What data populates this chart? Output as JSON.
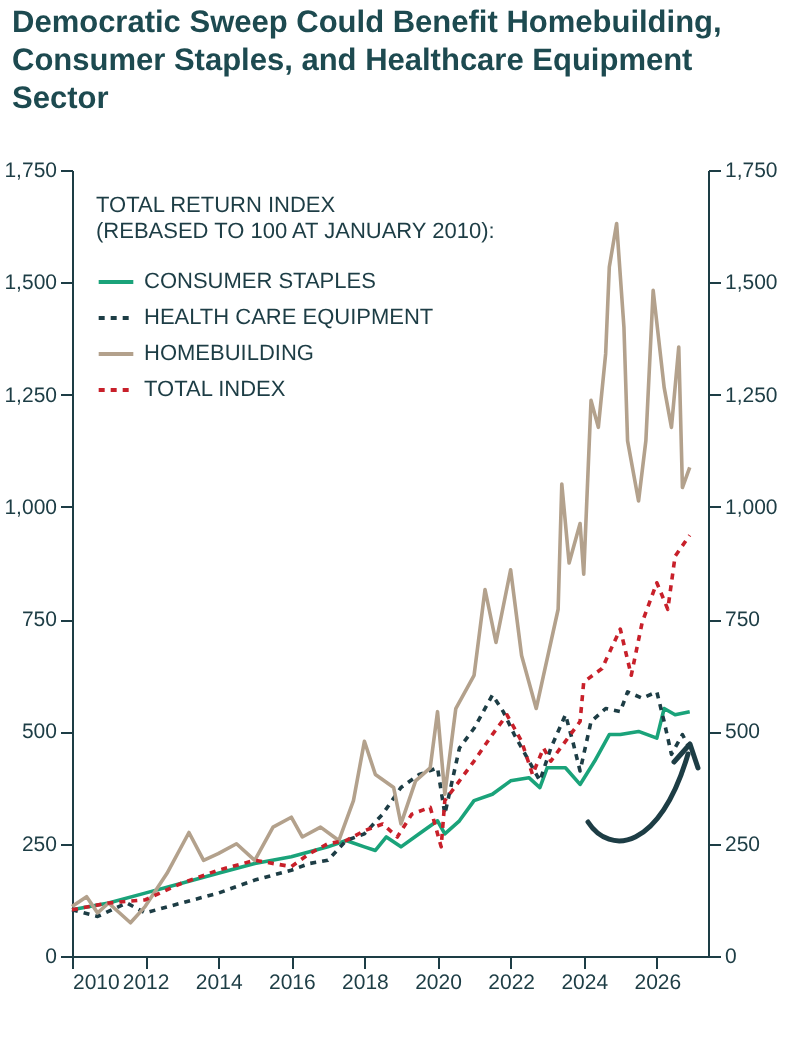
{
  "chart_data": {
    "type": "line",
    "title": "Democratic Sweep Could Benefit Homebuilding, Consumer Staples, and Healthcare Equipment Sector",
    "legend_title": "TOTAL RETURN INDEX\n(REBASED TO 100 AT JANUARY 2010):",
    "legend": "top left",
    "xlim": [
      2010,
      2027.4
    ],
    "xticks": [
      2010,
      2012,
      2014,
      2016,
      2018,
      2020,
      2022,
      2024,
      2026
    ],
    "ylim": [
      0,
      1750
    ],
    "yticks": [
      0,
      250,
      500,
      750,
      {
        "value": 1000,
        "label": "1,000"
      },
      {
        "value": 1250,
        "label": "1,250"
      },
      {
        "value": 1500,
        "label": "1,500"
      },
      {
        "value": 1750,
        "label": "1,750"
      }
    ],
    "y2lim": [
      0,
      1750
    ],
    "y2ticks": [
      0,
      250,
      500,
      750,
      {
        "value": 1000,
        "label": "1,000"
      },
      {
        "value": 1250,
        "label": "1,250"
      },
      {
        "value": 1500,
        "label": "1,500"
      },
      {
        "value": 1750,
        "label": "1,750"
      }
    ],
    "grid": false,
    "series": [
      {
        "name": "CONSUMER STAPLES",
        "color": "#1aa37a",
        "line_style": "solid",
        "x": [
          2010,
          2011,
          2012,
          2013,
          2014,
          2015,
          2016,
          2017,
          2017.5,
          2018,
          2018.3,
          2018.6,
          2019,
          2019.5,
          2020,
          2020.2,
          2020.6,
          2021,
          2021.5,
          2022,
          2022.5,
          2022.8,
          2023,
          2023.5,
          2023.9,
          2024.3,
          2024.7,
          2025,
          2025.5,
          2026,
          2026.2,
          2026.5,
          2026.9
        ],
        "values": [
          103,
          118,
          140,
          162,
          184,
          206,
          221,
          243,
          257,
          243,
          235,
          265,
          243,
          272,
          301,
          272,
          301,
          346,
          360,
          390,
          397,
          375,
          419,
          419,
          382,
          434,
          493,
          493,
          500,
          485,
          551,
          537,
          544
        ]
      },
      {
        "name": "HEALTH CARE EQUIPMENT",
        "color": "#1d3d45",
        "line_style": "dashed",
        "x": [
          2010,
          2010.7,
          2011.5,
          2012,
          2013,
          2014,
          2015,
          2016,
          2016.5,
          2017,
          2017.5,
          2018,
          2018.5,
          2019,
          2019.5,
          2020,
          2020.2,
          2020.6,
          2021,
          2021.5,
          2021.8,
          2022.1,
          2022.5,
          2022.8,
          2023.1,
          2023.5,
          2023.7,
          2023.9,
          2024.2,
          2024.6,
          2025,
          2025.2,
          2025.6,
          2026,
          2026.2,
          2026.4,
          2026.7,
          2026.9
        ],
        "values": [
          103,
          88,
          118,
          96,
          118,
          140,
          169,
          191,
          206,
          213,
          257,
          272,
          316,
          375,
          404,
          419,
          316,
          463,
          507,
          581,
          544,
          493,
          434,
          390,
          463,
          537,
          478,
          412,
          522,
          551,
          544,
          588,
          574,
          588,
          522,
          449,
          493,
          463
        ]
      },
      {
        "name": "HOMEBUILDING",
        "color": "#b3a18c",
        "line_style": "solid",
        "x": [
          2010,
          2010.4,
          2010.7,
          2011,
          2011.6,
          2012,
          2012.6,
          2013.2,
          2013.6,
          2014,
          2014.5,
          2015,
          2015.5,
          2016,
          2016.3,
          2016.8,
          2017.3,
          2017.7,
          2018,
          2018.3,
          2018.8,
          2019,
          2019.4,
          2019.8,
          2020,
          2020.2,
          2020.5,
          2021,
          2021.3,
          2021.6,
          2022,
          2022.3,
          2022.7,
          2022.9,
          2023.3,
          2023.4,
          2023.6,
          2023.9,
          2024,
          2024.2,
          2024.4,
          2024.6,
          2024.7,
          2024.9,
          2025.1,
          2025.2,
          2025.5,
          2025.7,
          2025.9,
          2026.2,
          2026.4,
          2026.6,
          2026.7,
          2026.9
        ],
        "values": [
          110,
          132,
          96,
          118,
          74,
          110,
          184,
          275,
          213,
          228,
          250,
          213,
          287,
          309,
          265,
          287,
          257,
          346,
          478,
          404,
          375,
          294,
          390,
          419,
          544,
          360,
          551,
          625,
          816,
          698,
          860,
          669,
          551,
          625,
          772,
          1051,
          875,
          963,
          850,
          1237,
          1177,
          1341,
          1534,
          1631,
          1400,
          1147,
          1013,
          1147,
          1482,
          1266,
          1177,
          1356,
          1043,
          1088
        ]
      },
      {
        "name": "TOTAL INDEX",
        "color": "#c8202a",
        "line_style": "dashed",
        "x": [
          2010,
          2011,
          2012,
          2013,
          2014,
          2015,
          2016,
          2016.5,
          2017,
          2017.5,
          2018,
          2018.5,
          2018.9,
          2019.3,
          2019.8,
          2020.1,
          2020.2,
          2020.6,
          2021,
          2021.5,
          2021.9,
          2022.3,
          2022.6,
          2022.9,
          2023.1,
          2023.5,
          2023.9,
          2024,
          2024.5,
          2025,
          2025.3,
          2025.6,
          2026,
          2026.3,
          2026.5,
          2026.9
        ],
        "values": [
          103,
          118,
          125,
          162,
          191,
          213,
          199,
          228,
          250,
          257,
          279,
          294,
          265,
          316,
          331,
          243,
          346,
          390,
          434,
          493,
          537,
          478,
          404,
          463,
          434,
          478,
          522,
          610,
          640,
          728,
          625,
          743,
          831,
          772,
          890,
          937
        ]
      }
    ]
  }
}
